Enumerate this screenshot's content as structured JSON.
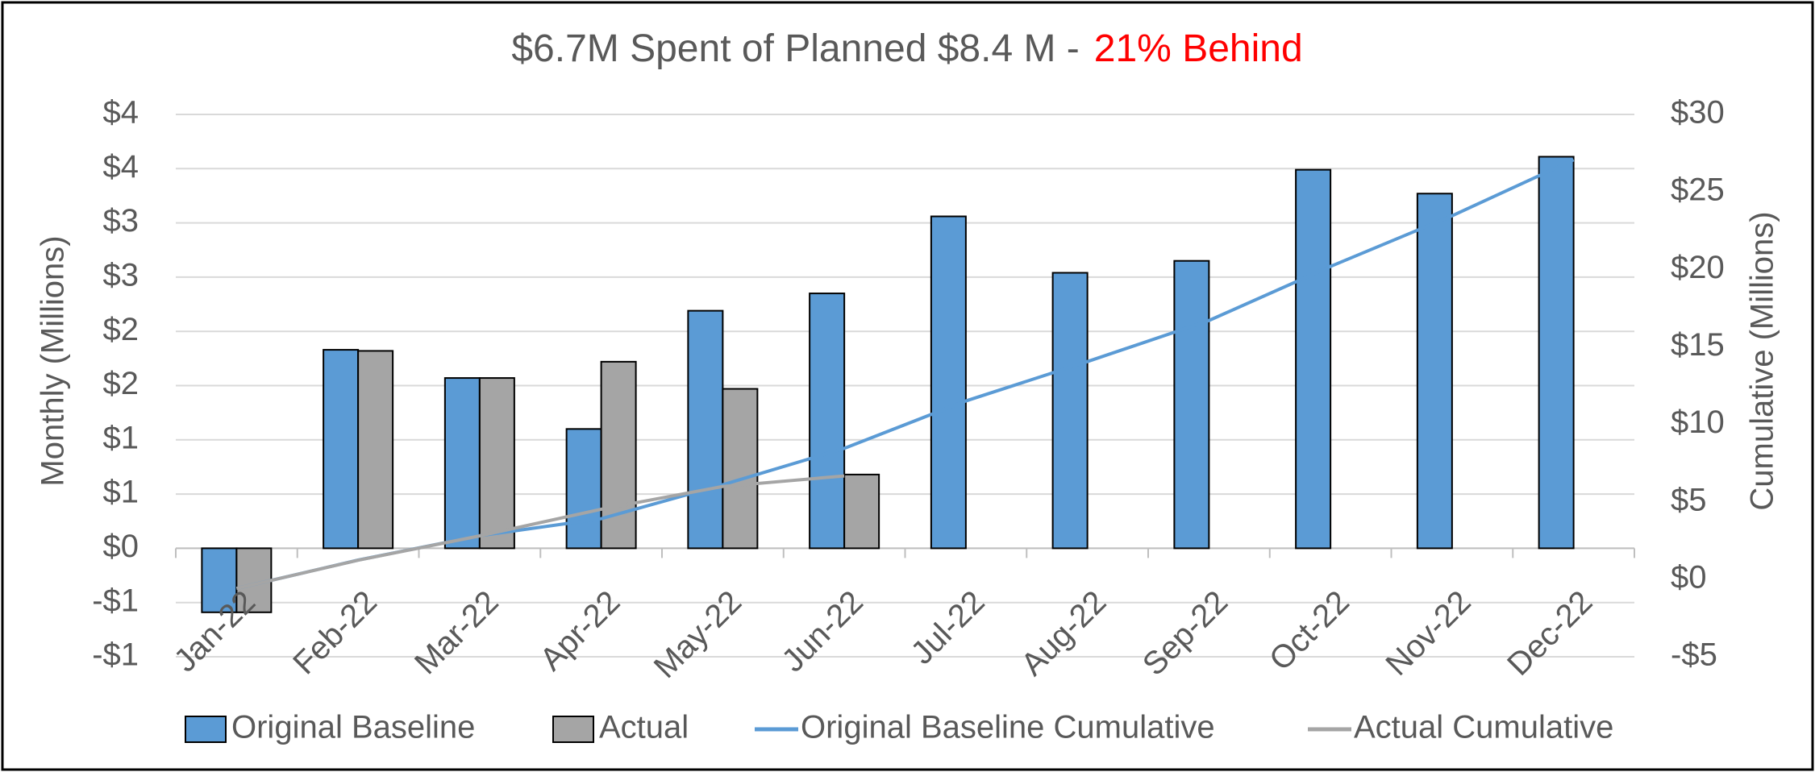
{
  "chart_data": {
    "type": "bar",
    "title": "$6.7M Spent of Planned $8.4 M  -",
    "title_highlight": "21% Behind",
    "title_highlight_color": "#ff0000",
    "y_label": "Monthly (Millions)",
    "y2_label": "Cumulative (Millions)",
    "categories": [
      "Jan-22",
      "Feb-22",
      "Mar-22",
      "Apr-22",
      "May-22",
      "Jun-22",
      "Jul-22",
      "Aug-22",
      "Sep-22",
      "Oct-22",
      "Nov-22",
      "Dec-22"
    ],
    "series": [
      {
        "name": "Original Baseline",
        "type": "bar",
        "color": "#5b9bd5",
        "values": [
          -0.59,
          1.83,
          1.57,
          1.1,
          2.19,
          2.35,
          3.06,
          2.54,
          2.65,
          3.49,
          3.27,
          3.61
        ]
      },
      {
        "name": "Actual",
        "type": "bar",
        "color": "#a5a5a5",
        "values": [
          -0.59,
          1.82,
          1.57,
          1.72,
          1.47,
          0.68,
          null,
          null,
          null,
          null,
          null,
          null
        ]
      },
      {
        "name": "Original Baseline Cumulative",
        "type": "line",
        "axis": "y2",
        "color": "#5b9bd5",
        "values": [
          -0.59,
          1.24,
          2.81,
          3.91,
          6.1,
          8.45,
          11.51,
          14.05,
          16.7,
          20.19,
          23.46,
          27.07
        ]
      },
      {
        "name": "Actual Cumulative",
        "type": "line",
        "axis": "y2",
        "color": "#a5a5a5",
        "values": [
          -0.59,
          1.23,
          2.8,
          4.52,
          5.99,
          6.67,
          null,
          null,
          null,
          null,
          null,
          null
        ]
      }
    ],
    "ylim": [
      -1,
      4
    ],
    "yticks": [
      {
        "value": -1,
        "label": "-$1"
      },
      {
        "value": -0.5,
        "label": "-$1"
      },
      {
        "value": 0,
        "label": "$0"
      },
      {
        "value": 0.5,
        "label": "$1"
      },
      {
        "value": 1,
        "label": "$1"
      },
      {
        "value": 1.5,
        "label": "$2"
      },
      {
        "value": 2,
        "label": "$2"
      },
      {
        "value": 2.5,
        "label": "$3"
      },
      {
        "value": 3,
        "label": "$3"
      },
      {
        "value": 3.5,
        "label": "$4"
      },
      {
        "value": 4,
        "label": "$4"
      }
    ],
    "y2lim": [
      -5,
      30
    ],
    "y2ticks": [
      {
        "value": -5,
        "label": "-$5"
      },
      {
        "value": 0,
        "label": "$0"
      },
      {
        "value": 5,
        "label": "$5"
      },
      {
        "value": 10,
        "label": "$10"
      },
      {
        "value": 15,
        "label": "$15"
      },
      {
        "value": 20,
        "label": "$20"
      },
      {
        "value": 25,
        "label": "$25"
      },
      {
        "value": 30,
        "label": "$30"
      }
    ],
    "grid": true,
    "legend": "bottom"
  }
}
